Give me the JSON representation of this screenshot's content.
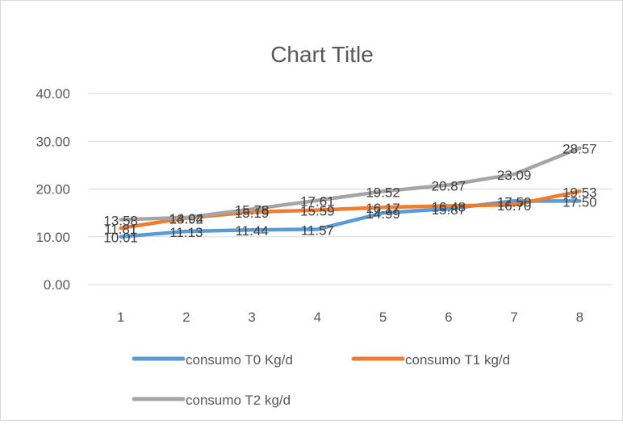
{
  "chart_data": {
    "type": "line",
    "title": "Chart Title",
    "categories": [
      "1",
      "2",
      "3",
      "4",
      "5",
      "6",
      "7",
      "8"
    ],
    "ylim": [
      0,
      40
    ],
    "y_ticks": [
      "0.00",
      "10.00",
      "20.00",
      "30.00",
      "40.00"
    ],
    "grid": true,
    "legend_position": "bottom",
    "series": [
      {
        "name": "consumo T0 Kg/d",
        "color": "#5b9bd5",
        "values": [
          10.01,
          11.13,
          11.44,
          11.57,
          14.99,
          15.87,
          17.5,
          17.5
        ],
        "labels": [
          "10.01",
          "11.13",
          "11.44",
          "11.57",
          "14.99",
          "15.87",
          "17.50",
          "17.50"
        ]
      },
      {
        "name": "consumo T1 kg/d",
        "color": "#ed7d31",
        "values": [
          11.81,
          13.92,
          15.19,
          15.59,
          16.17,
          16.48,
          16.7,
          19.53
        ],
        "labels": [
          "11.81",
          "13.92",
          "15.19",
          "15.59",
          "16.17",
          "16.48",
          "16.70",
          "19.53"
        ]
      },
      {
        "name": "consumo T2 kg/d",
        "color": "#a5a5a5",
        "values": [
          13.58,
          14.04,
          15.78,
          17.61,
          19.52,
          20.87,
          23.09,
          28.57
        ],
        "labels": [
          "13.58",
          "14.04",
          "15.78",
          "17.61",
          "19.52",
          "20.87",
          "23.09",
          "28.57"
        ]
      }
    ]
  }
}
